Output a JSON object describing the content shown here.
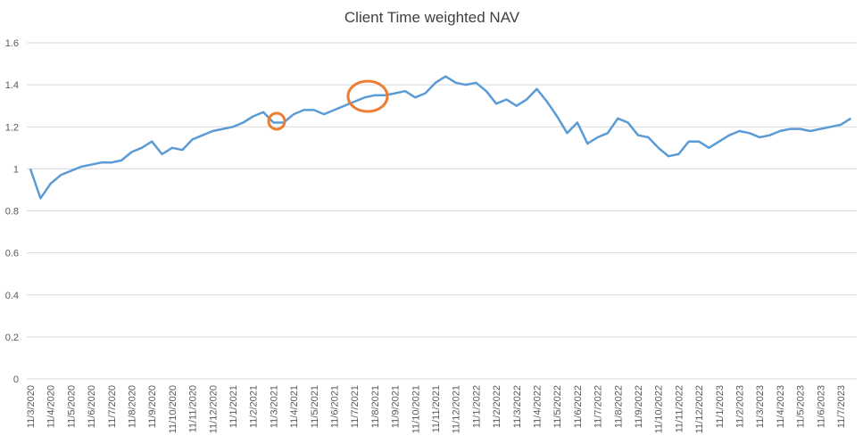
{
  "chart_data": {
    "type": "line",
    "title": "Client Time weighted NAV",
    "categories": [
      "11/3/2020",
      null,
      "11/4/2020",
      null,
      "11/5/2020",
      null,
      "11/6/2020",
      null,
      "11/7/2020",
      null,
      "11/8/2020",
      null,
      "11/9/2020",
      null,
      "11/10/2020",
      null,
      "11/11/2020",
      null,
      "11/12/2020",
      null,
      "11/1/2021",
      null,
      "11/2/2021",
      null,
      "11/3/2021",
      null,
      "11/4/2021",
      null,
      "11/5/2021",
      null,
      "11/6/2021",
      null,
      "11/7/2021",
      null,
      "11/8/2021",
      null,
      "11/9/2021",
      null,
      "11/10/2021",
      null,
      "11/11/2021",
      null,
      "11/12/2021",
      null,
      "11/1/2022",
      null,
      "11/2/2022",
      null,
      "11/3/2022",
      null,
      "11/4/2022",
      null,
      "11/5/2022",
      null,
      "11/6/2022",
      null,
      "11/7/2022",
      null,
      "11/8/2022",
      null,
      "11/9/2022",
      null,
      "11/10/2022",
      null,
      "11/11/2022",
      null,
      "11/12/2022",
      null,
      "11/1/2023",
      null,
      "11/2/2023",
      null,
      "11/3/2023",
      null,
      "11/4/2023",
      null,
      "11/5/2023",
      null,
      "11/6/2023",
      null,
      "11/7/2023",
      null
    ],
    "series": [
      {
        "name": "NAV",
        "color": "#5b9bd5",
        "values": [
          1.0,
          0.86,
          0.93,
          0.97,
          0.99,
          1.01,
          1.02,
          1.03,
          1.03,
          1.04,
          1.08,
          1.1,
          1.13,
          1.07,
          1.1,
          1.09,
          1.14,
          1.16,
          1.18,
          1.19,
          1.2,
          1.22,
          1.25,
          1.27,
          1.22,
          1.22,
          1.26,
          1.28,
          1.28,
          1.26,
          1.28,
          1.3,
          1.32,
          1.34,
          1.35,
          1.35,
          1.36,
          1.37,
          1.34,
          1.36,
          1.41,
          1.44,
          1.41,
          1.4,
          1.41,
          1.37,
          1.31,
          1.33,
          1.3,
          1.33,
          1.38,
          1.32,
          1.25,
          1.17,
          1.22,
          1.12,
          1.15,
          1.17,
          1.24,
          1.22,
          1.16,
          1.15,
          1.1,
          1.06,
          1.07,
          1.13,
          1.13,
          1.1,
          1.13,
          1.16,
          1.18,
          1.17,
          1.15,
          1.16,
          1.18,
          1.19,
          1.19,
          1.18,
          1.19,
          1.2,
          1.21,
          1.24
        ]
      }
    ],
    "ylim": [
      0,
      1.6
    ],
    "yticks": [
      0,
      0.2,
      0.4,
      0.6,
      0.8,
      1,
      1.2,
      1.4,
      1.6
    ],
    "grid": true
  }
}
